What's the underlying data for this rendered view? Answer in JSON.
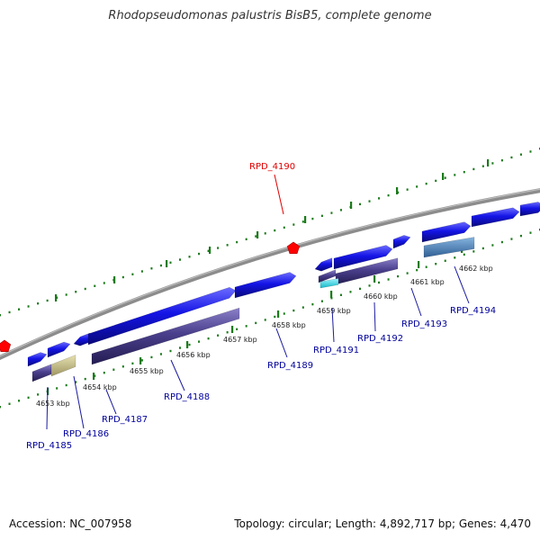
{
  "title": "Rhodopseudomonas palustris BisB5, complete genome",
  "footer": {
    "accession": "Accession: NC_007958",
    "topology": "Topology: circular; Length: 4,892,717 bp; Genes: 4,470"
  },
  "colors": {
    "backbone": "#8c8c8c",
    "tick": "#1a7a1a",
    "forward_gene": "#1414e6",
    "reverse_gene": "#4a3f8c",
    "pseudo_gene": "#c7c08a",
    "rna_gene": "#33e0ee",
    "other_gene": "#4a7fbf",
    "marker": "#ff0000",
    "label": "#00009c",
    "highlight_label": "#e00000"
  },
  "scale_labels": [
    "4653 kbp",
    "4654 kbp",
    "4655 kbp",
    "4656 kbp",
    "4657 kbp",
    "4658 kbp",
    "4659 kbp",
    "4660 kbp",
    "4661 kbp",
    "4662 kbp"
  ],
  "gene_labels": [
    "RPD_4185",
    "RPD_4186",
    "RPD_4187",
    "RPD_4188",
    "RPD_4189",
    "RPD_4190",
    "RPD_4191",
    "RPD_4192",
    "RPD_4193",
    "RPD_4194"
  ],
  "highlighted_gene": "RPD_4190"
}
